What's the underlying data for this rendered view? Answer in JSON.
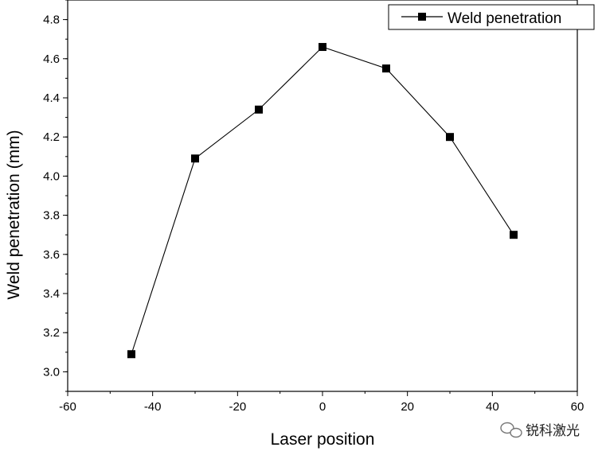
{
  "chart_data": {
    "type": "line",
    "title": "",
    "xlabel": "Laser position",
    "ylabel": "Weld penetration (mm)",
    "xlim": [
      -60,
      60
    ],
    "ylim": [
      2.9,
      4.9
    ],
    "x_ticks": [
      -60,
      -40,
      -20,
      0,
      20,
      40,
      60
    ],
    "y_ticks": [
      3.0,
      3.2,
      3.4,
      3.6,
      3.8,
      4.0,
      4.2,
      4.4,
      4.6,
      4.8
    ],
    "x_tick_labels": [
      "-60",
      "-40",
      "-20",
      "0",
      "20",
      "40",
      "60"
    ],
    "y_tick_labels": [
      "3.0",
      "3.2",
      "3.4",
      "3.6",
      "3.8",
      "4.0",
      "4.2",
      "4.4",
      "4.6",
      "4.8"
    ],
    "grid": false,
    "legend_position": "top-right",
    "series": [
      {
        "name": "Weld penetration",
        "color": "#000000",
        "marker": "square",
        "x": [
          -45,
          -30,
          -15,
          0,
          15,
          30,
          45
        ],
        "y": [
          3.09,
          4.09,
          4.34,
          4.66,
          4.55,
          4.2,
          3.7
        ]
      }
    ]
  },
  "watermark": {
    "text": "锐科激光",
    "icon": "wechat-icon"
  }
}
